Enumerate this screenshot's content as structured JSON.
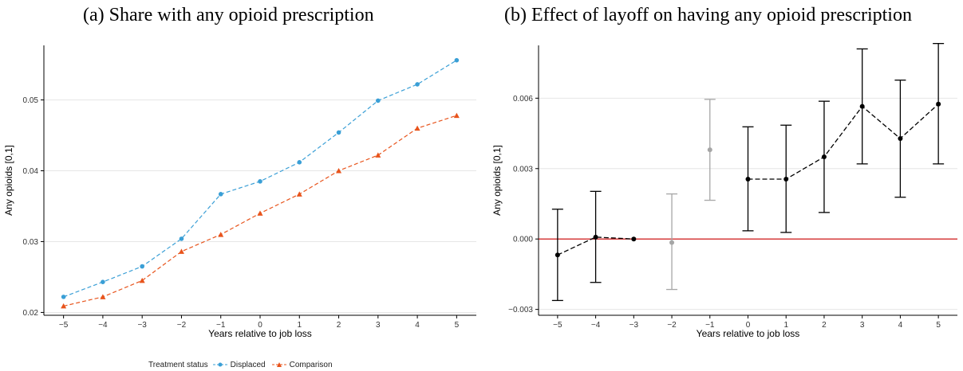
{
  "chart_data": [
    {
      "type": "line",
      "title": "(a) Share with any opioid prescription",
      "xlabel": "Years relative to job loss",
      "ylabel": "Any opioids [0,1]",
      "x": [
        -5,
        -4,
        -3,
        -2,
        -1,
        0,
        1,
        2,
        3,
        4,
        5
      ],
      "xticks": [
        "−5",
        "−4",
        "−3",
        "−2",
        "−1",
        "0",
        "1",
        "2",
        "3",
        "4",
        "5"
      ],
      "yticks": [
        "0.02",
        "0.03",
        "0.04",
        "0.05"
      ],
      "xlim": [
        -5.5,
        5.5
      ],
      "ylim": [
        0.0196,
        0.0577
      ],
      "grid": true,
      "legend_position": "bottom",
      "legend_title": "Treatment status",
      "series": [
        {
          "name": "Displaced",
          "marker": "circle",
          "color": "#3a9fd6",
          "values": [
            0.0222,
            0.0243,
            0.0265,
            0.0304,
            0.0367,
            0.0385,
            0.0412,
            0.0454,
            0.0499,
            0.0522,
            0.0556
          ]
        },
        {
          "name": "Comparison",
          "marker": "triangle",
          "color": "#e8541c",
          "values": [
            0.0209,
            0.0222,
            0.0245,
            0.0286,
            0.031,
            0.034,
            0.0367,
            0.04,
            0.0422,
            0.046,
            0.0478
          ]
        }
      ]
    },
    {
      "type": "scatter",
      "title": "(b) Effect of layoff on having any opioid prescription",
      "xlabel": "Years relative to job loss",
      "ylabel": "Any opioids [0,1]",
      "x": [
        -5,
        -4,
        -3,
        -2,
        -1,
        0,
        1,
        2,
        3,
        4,
        5
      ],
      "xticks": [
        "−5",
        "−4",
        "−3",
        "−2",
        "−1",
        "0",
        "1",
        "2",
        "3",
        "4",
        "5"
      ],
      "yticks": [
        "−0.003",
        "0.000",
        "0.003",
        "0.006"
      ],
      "ytick_values": [
        -0.003,
        0.0,
        0.003,
        0.006
      ],
      "xlim": [
        -5.5,
        5.5
      ],
      "ylim": [
        -0.00325,
        0.00825
      ],
      "grid": true,
      "reference_line": {
        "y": 0,
        "color": "#cc0000"
      },
      "points": [
        {
          "x": -5,
          "y": -0.00068,
          "lo": -0.00262,
          "hi": 0.00127,
          "color": "#000000"
        },
        {
          "x": -4,
          "y": 8e-05,
          "lo": -0.00185,
          "hi": 0.00203,
          "color": "#000000"
        },
        {
          "x": -3,
          "y": 0.0,
          "color": "#000000"
        },
        {
          "x": -2,
          "y": -0.00015,
          "lo": -0.00215,
          "hi": 0.00192,
          "color": "#a6a6a6"
        },
        {
          "x": -1,
          "y": 0.0038,
          "lo": 0.00165,
          "hi": 0.00595,
          "color": "#a6a6a6"
        },
        {
          "x": 0,
          "y": 0.00255,
          "lo": 0.00035,
          "hi": 0.00478,
          "color": "#000000"
        },
        {
          "x": 1,
          "y": 0.00255,
          "lo": 0.00028,
          "hi": 0.00485,
          "color": "#000000"
        },
        {
          "x": 2,
          "y": 0.0035,
          "lo": 0.00113,
          "hi": 0.00587,
          "color": "#000000"
        },
        {
          "x": 3,
          "y": 0.00565,
          "lo": 0.0032,
          "hi": 0.0081,
          "color": "#000000"
        },
        {
          "x": 4,
          "y": 0.00428,
          "lo": 0.00178,
          "hi": 0.00677,
          "color": "#000000"
        },
        {
          "x": 5,
          "y": 0.00575,
          "lo": 0.0032,
          "hi": 0.00833,
          "color": "#000000"
        }
      ],
      "connect_groups": [
        [
          -5,
          -4,
          -3
        ],
        [
          0,
          1,
          2,
          3,
          4,
          5
        ]
      ]
    }
  ]
}
